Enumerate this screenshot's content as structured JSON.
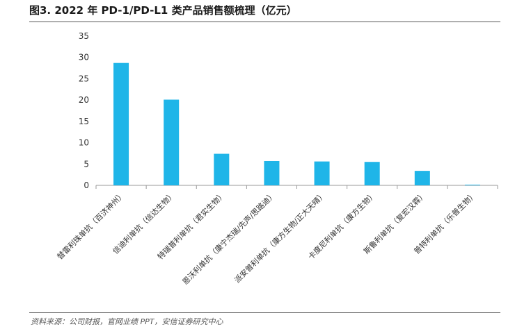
{
  "figure_title": "图3. 2022 年 PD-1/PD-L1 类产品销售额梳理（亿元）",
  "source_note": "资料来源：公司财报，官网业绩 PPT，安信证券研究中心",
  "colors": {
    "bar": "#1fb5e8",
    "axis": "#999999"
  },
  "chart_data": {
    "type": "bar",
    "title": "2022 年 PD-1/PD-L1 类产品销售额梳理（亿元）",
    "categories": [
      "替雷利珠单抗（百济神州）",
      "信迪利单抗（信达生物）",
      "特瑞普利单抗（君实生物）",
      "恩沃利单抗（康宁杰瑞/先声/思路迪）",
      "派安普利单抗（康方生物/正大天晴）",
      "卡度尼利单抗（康方生物）",
      "斯鲁利单抗（复宏汉霖）",
      "普特利单抗（乐普生物）"
    ],
    "values": [
      28.7,
      20.1,
      7.4,
      5.7,
      5.6,
      5.5,
      3.4,
      0.1
    ],
    "ylim": [
      0,
      35
    ],
    "yticks": [
      0,
      5,
      10,
      15,
      20,
      25,
      30,
      35
    ],
    "xlabel": "",
    "ylabel": "",
    "grid": false,
    "legend": "none"
  }
}
